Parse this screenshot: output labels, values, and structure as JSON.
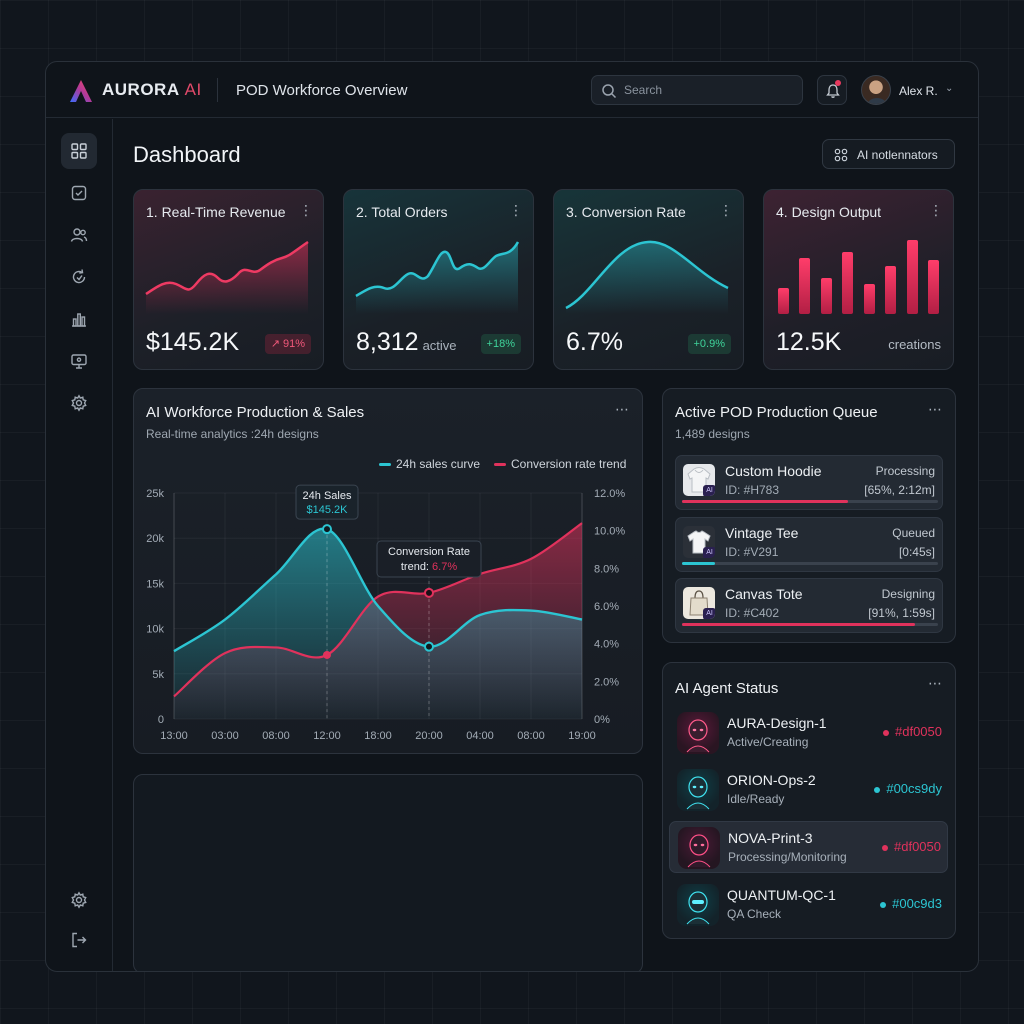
{
  "header": {
    "brand": "AURORA",
    "brand_ai": "AI",
    "page_title": "POD Workforce Overview",
    "search_placeholder": "Search",
    "user_name": "Alex R."
  },
  "sidebar": {
    "items": [
      {
        "icon": "grid-icon",
        "active": true
      },
      {
        "icon": "checklist-icon"
      },
      {
        "icon": "users-icon"
      },
      {
        "icon": "refresh-icon"
      },
      {
        "icon": "bar-chart-icon"
      },
      {
        "icon": "monitor-icon"
      },
      {
        "icon": "gear-icon"
      }
    ],
    "bottom": [
      {
        "icon": "settings-icon"
      },
      {
        "icon": "logout-icon"
      }
    ]
  },
  "main": {
    "title": "Dashboard",
    "notifications_label": "AI notlennators"
  },
  "kpis": [
    {
      "title": "1. Real-Time Revenue",
      "value": "$145.2K",
      "badge": "↗ 91%",
      "badge_tone": "red"
    },
    {
      "title": "2. Total Orders",
      "value": "8,312",
      "sub": "active",
      "badge": "+18%",
      "badge_tone": "green"
    },
    {
      "title": "3. Conversion Rate",
      "value": "6.7%",
      "badge": "+0.9%",
      "badge_tone": "green"
    },
    {
      "title": "4. Design Output",
      "value": "12.5K",
      "unit": "creations"
    }
  ],
  "production_panel": {
    "title": "AI Workforce Production & Sales",
    "subtitle": "Real-time analytics :24h designs",
    "tooltip_sales_title": "24h Sales",
    "tooltip_sales_value": "$145.2K",
    "tooltip_conv_title": "Conversion Rate",
    "tooltip_conv_prefix": "trend:",
    "tooltip_conv_value": "6.7%"
  },
  "chart_data": {
    "type": "area",
    "x": [
      "13:00",
      "03:00",
      "08:00",
      "12:00",
      "18:00",
      "20:00",
      "04:00",
      "08:00",
      "19:00"
    ],
    "y_left_ticks": [
      "25k",
      "20k",
      "15k",
      "10k",
      "5k",
      "0"
    ],
    "y_right_ticks": [
      "12.0%",
      "10.0%",
      "8.0%",
      "6.0%",
      "4.0%",
      "2.0%",
      "0%"
    ],
    "ylim_left": [
      0,
      25000
    ],
    "ylim_right": [
      0,
      12
    ],
    "series": [
      {
        "name": "24h sales curve",
        "axis": "left",
        "color": "#2cc5d2",
        "values": [
          7500,
          11000,
          16000,
          21000,
          12500,
          8000,
          11500,
          12000,
          11000
        ]
      },
      {
        "name": "Conversion rate trend",
        "axis": "right",
        "color": "#e0325c",
        "values": [
          1.2,
          3.5,
          3.8,
          3.4,
          6.5,
          6.7,
          7.7,
          8.5,
          10.4
        ]
      }
    ],
    "legend": "top-right",
    "grid": true
  },
  "queue": {
    "title": "Active POD Production Queue",
    "subtitle": "1,489 designs",
    "items": [
      {
        "name": "Custom Hoodie",
        "id": "ID: #H783",
        "status": "Processing",
        "meta": "[65%, 2:12m]",
        "progress": 0.65,
        "color": "#e0325c",
        "item": "hoodie"
      },
      {
        "name": "Vintage Tee",
        "id": "ID: #V291",
        "status": "Queued",
        "meta": "[0:45s]",
        "progress": 0.13,
        "color": "#2cc5d2",
        "item": "tee"
      },
      {
        "name": "Canvas Tote",
        "id": "ID: #C402",
        "status": "Designing",
        "meta": "[91%, 1:59s]",
        "progress": 0.91,
        "color": "#e0325c",
        "item": "tote"
      }
    ],
    "ai_tag": "AI"
  },
  "agents": {
    "title": "AI Agent Status",
    "items": [
      {
        "name": "AURA-Design-1",
        "state": "Active/Creating",
        "code": "#df0050",
        "color": "#e0325c"
      },
      {
        "name": "ORION-Ops-2",
        "state": "Idle/Ready",
        "code": "#00cs9dy",
        "color": "#2cc5d2"
      },
      {
        "name": "NOVA-Print-3",
        "state": "Processing/Monitoring",
        "code": "#df0050",
        "color": "#e0325c"
      },
      {
        "name": "QUANTUM-QC-1",
        "state": "QA Check",
        "code": "#00c9d3",
        "color": "#2cc5d2"
      }
    ]
  }
}
